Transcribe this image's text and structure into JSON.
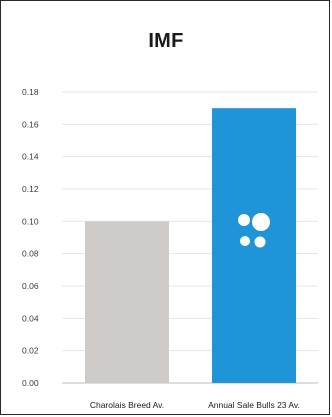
{
  "chart_data": {
    "type": "bar",
    "title": "IMF",
    "categories": [
      "Charolais Breed Av.",
      "Annual Sale Bulls 23 Av."
    ],
    "values": [
      0.1,
      0.17
    ],
    "bar_colors": [
      "#cfcbc9",
      "#1f95d8"
    ],
    "ylim": [
      0,
      0.18
    ],
    "y_ticks": [
      "0.00",
      "0.02",
      "0.04",
      "0.06",
      "0.08",
      "0.10",
      "0.12",
      "0.14",
      "0.16",
      "0.18"
    ],
    "grid": true,
    "legend": "none"
  },
  "logo_icon": "four-dots-logo-icon"
}
